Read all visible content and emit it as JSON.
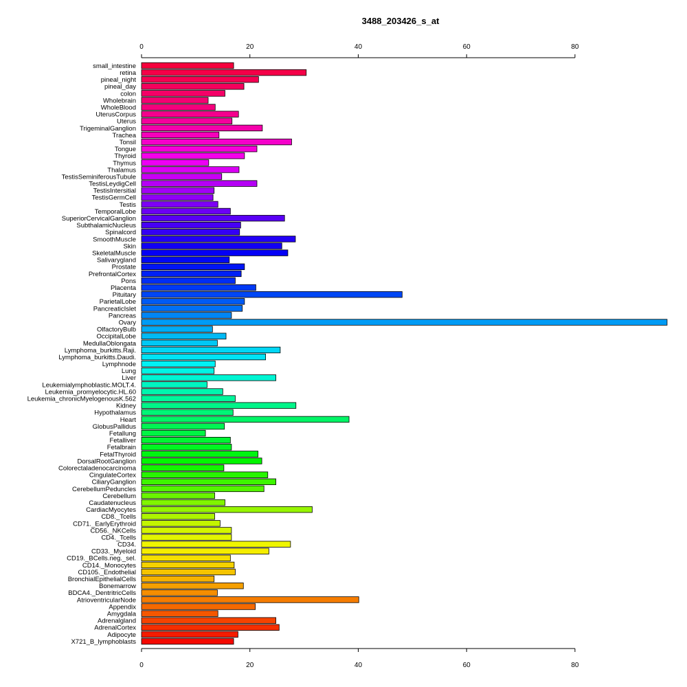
{
  "chart_data": {
    "type": "bar",
    "orientation": "horizontal",
    "title": "3488_203426_s_at",
    "xlabel": "",
    "ylabel": "",
    "xlim": [
      0,
      97
    ],
    "x_ticks": [
      0,
      20,
      40,
      60,
      80
    ],
    "grid": false,
    "categories": [
      "small_intestine",
      "retina",
      "pineal_night",
      "pineal_day",
      "colon",
      "Wholebrain",
      "WholeBlood",
      "UterusCorpus",
      "Uterus",
      "TrigeminalGanglion",
      "Trachea",
      "Tonsil",
      "Tongue",
      "Thyroid",
      "Thymus",
      "Thalamus",
      "TestisSeminiferousTubule",
      "TestisLeydigCell",
      "TestisIntersitial",
      "TestisGermCell",
      "Testis",
      "TemporalLobe",
      "SuperiorCervicalGanglion",
      "SubthalamicNucleus",
      "Spinalcord",
      "SmoothMuscle",
      "Skin",
      "SkeletalMuscle",
      "Salivarygland",
      "Prostate",
      "PrefrontalCortex",
      "Pons",
      "Placenta",
      "Pituitary",
      "ParietalLobe",
      "PancreaticIslet",
      "Pancreas",
      "Ovary",
      "OlfactoryBulb",
      "OccipitalLobe",
      "MedullaOblongata",
      "Lymphoma_burkitts.Raji.",
      "Lymphoma_burkitts.Daudi.",
      "Lymphnode",
      "Lung",
      "Liver",
      "Leukemialymphoblastic.MOLT.4.",
      "Leukemia_promyelocytic.HL.60",
      "Leukemia_chronicMyelogenousK.562",
      "Kidney",
      "Hypothalamus",
      "Heart",
      "GlobusPallidus",
      "Fetallung",
      "Fetalliver",
      "Fetalbrain",
      "FetalThyroid",
      "DorsalRootGanglion",
      "Colorectaladenocarcinoma",
      "CingulateCortex",
      "CiliaryGanglion",
      "CerebellumPeduncles",
      "Cerebellum",
      "Caudatenucleus",
      "CardiacMyocytes",
      "CD8._Tcells",
      "CD71._EarlyErythroid",
      "CD56._NKCells",
      "CD4._Tcells",
      "CD34.",
      "CD33._Myeloid",
      "CD19._BCells.neg._sel.",
      "CD14._Monocytes",
      "CD105._Endothelial",
      "BronchialEpithelialCells",
      "Bonemarrow",
      "BDCA4._DentritricCells",
      "AtrioventricularNode",
      "Appendix",
      "Amygdala",
      "Adrenalgland",
      "AdrenalCortex",
      "Adipocyte",
      "X721_B_lymphoblasts"
    ],
    "values": [
      17.0,
      30.4,
      21.6,
      18.9,
      15.4,
      12.3,
      13.6,
      17.9,
      16.7,
      22.3,
      14.3,
      27.7,
      21.3,
      19.0,
      12.4,
      18.0,
      14.8,
      21.3,
      13.4,
      13.2,
      14.1,
      16.4,
      26.4,
      18.3,
      18.1,
      28.4,
      25.9,
      27.0,
      16.2,
      19.0,
      18.4,
      17.3,
      21.1,
      48.1,
      19.0,
      18.6,
      16.6,
      97.0,
      13.1,
      15.6,
      14.0,
      25.6,
      22.9,
      13.6,
      13.4,
      24.8,
      12.1,
      15.0,
      17.3,
      28.5,
      16.9,
      38.3,
      15.3,
      11.8,
      16.4,
      16.6,
      21.5,
      22.2,
      15.2,
      23.3,
      24.8,
      22.6,
      13.5,
      15.4,
      31.5,
      13.5,
      14.5,
      16.6,
      16.6,
      27.5,
      23.5,
      16.4,
      17.1,
      17.3,
      13.4,
      18.8,
      14.0,
      40.1,
      21.0,
      14.1,
      24.8,
      25.4,
      17.8,
      17.0
    ]
  }
}
